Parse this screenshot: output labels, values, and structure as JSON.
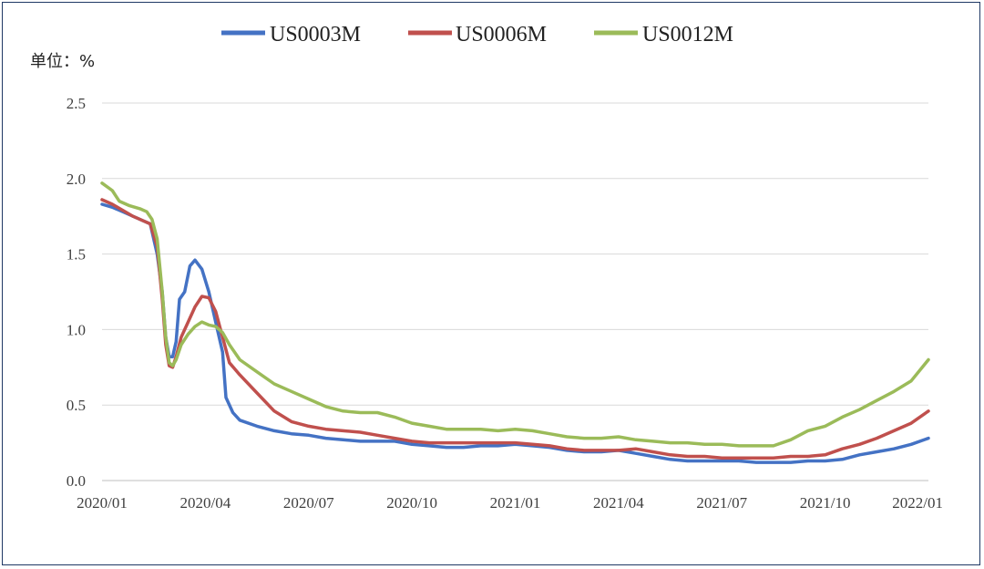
{
  "chart_data": {
    "type": "line",
    "title": "",
    "unit_label": "单位：%",
    "ylim": [
      0,
      2.5
    ],
    "y_ticks": [
      "0.0",
      "0.5",
      "1.0",
      "1.5",
      "2.0",
      "2.5"
    ],
    "y_tick_values": [
      0,
      0.5,
      1.0,
      1.5,
      2.0,
      2.5
    ],
    "x_ticks": [
      "2020/01",
      "2020/04",
      "2020/07",
      "2020/10",
      "2021/01",
      "2021/04",
      "2021/07",
      "2021/10",
      "2022/01"
    ],
    "xlim": [
      0,
      24
    ],
    "grid": true,
    "legend_position": "top",
    "series": [
      {
        "name": "US0003M",
        "color": "#4472c4",
        "points": [
          [
            0,
            1.83
          ],
          [
            0.3,
            1.81
          ],
          [
            0.6,
            1.78
          ],
          [
            0.9,
            1.75
          ],
          [
            1.2,
            1.72
          ],
          [
            1.4,
            1.7
          ],
          [
            1.6,
            1.5
          ],
          [
            1.75,
            1.25
          ],
          [
            1.85,
            0.95
          ],
          [
            1.95,
            0.82
          ],
          [
            2.05,
            0.82
          ],
          [
            2.15,
            0.92
          ],
          [
            2.25,
            1.2
          ],
          [
            2.4,
            1.25
          ],
          [
            2.55,
            1.42
          ],
          [
            2.7,
            1.46
          ],
          [
            2.9,
            1.4
          ],
          [
            3.1,
            1.25
          ],
          [
            3.3,
            1.05
          ],
          [
            3.5,
            0.85
          ],
          [
            3.6,
            0.55
          ],
          [
            3.8,
            0.45
          ],
          [
            4.0,
            0.4
          ],
          [
            4.5,
            0.36
          ],
          [
            5,
            0.33
          ],
          [
            5.5,
            0.31
          ],
          [
            6,
            0.3
          ],
          [
            6.5,
            0.28
          ],
          [
            7,
            0.27
          ],
          [
            7.5,
            0.26
          ],
          [
            8,
            0.26
          ],
          [
            8.5,
            0.26
          ],
          [
            9,
            0.24
          ],
          [
            9.5,
            0.23
          ],
          [
            10,
            0.22
          ],
          [
            10.5,
            0.22
          ],
          [
            11,
            0.23
          ],
          [
            11.5,
            0.23
          ],
          [
            12,
            0.24
          ],
          [
            12.5,
            0.23
          ],
          [
            13,
            0.22
          ],
          [
            13.5,
            0.2
          ],
          [
            14,
            0.19
          ],
          [
            14.5,
            0.19
          ],
          [
            15,
            0.2
          ],
          [
            15.5,
            0.18
          ],
          [
            16,
            0.16
          ],
          [
            16.5,
            0.14
          ],
          [
            17,
            0.13
          ],
          [
            17.5,
            0.13
          ],
          [
            18,
            0.13
          ],
          [
            18.5,
            0.13
          ],
          [
            19,
            0.12
          ],
          [
            19.5,
            0.12
          ],
          [
            20,
            0.12
          ],
          [
            20.5,
            0.13
          ],
          [
            21,
            0.13
          ],
          [
            21.5,
            0.14
          ],
          [
            22,
            0.17
          ],
          [
            22.5,
            0.19
          ],
          [
            23,
            0.21
          ],
          [
            23.5,
            0.24
          ],
          [
            24,
            0.28
          ]
        ]
      },
      {
        "name": "US0006M",
        "color": "#c0504d",
        "points": [
          [
            0,
            1.86
          ],
          [
            0.3,
            1.83
          ],
          [
            0.6,
            1.79
          ],
          [
            0.9,
            1.75
          ],
          [
            1.2,
            1.72
          ],
          [
            1.4,
            1.7
          ],
          [
            1.6,
            1.55
          ],
          [
            1.75,
            1.2
          ],
          [
            1.85,
            0.9
          ],
          [
            1.95,
            0.76
          ],
          [
            2.05,
            0.75
          ],
          [
            2.15,
            0.82
          ],
          [
            2.3,
            0.95
          ],
          [
            2.5,
            1.05
          ],
          [
            2.7,
            1.15
          ],
          [
            2.9,
            1.22
          ],
          [
            3.1,
            1.21
          ],
          [
            3.3,
            1.12
          ],
          [
            3.5,
            0.95
          ],
          [
            3.7,
            0.78
          ],
          [
            4.0,
            0.7
          ],
          [
            4.5,
            0.58
          ],
          [
            5,
            0.46
          ],
          [
            5.5,
            0.39
          ],
          [
            6,
            0.36
          ],
          [
            6.5,
            0.34
          ],
          [
            7,
            0.33
          ],
          [
            7.5,
            0.32
          ],
          [
            8,
            0.3
          ],
          [
            8.5,
            0.28
          ],
          [
            9,
            0.26
          ],
          [
            9.5,
            0.25
          ],
          [
            10,
            0.25
          ],
          [
            10.5,
            0.25
          ],
          [
            11,
            0.25
          ],
          [
            11.5,
            0.25
          ],
          [
            12,
            0.25
          ],
          [
            12.5,
            0.24
          ],
          [
            13,
            0.23
          ],
          [
            13.5,
            0.21
          ],
          [
            14,
            0.2
          ],
          [
            14.5,
            0.2
          ],
          [
            15,
            0.2
          ],
          [
            15.5,
            0.21
          ],
          [
            16,
            0.19
          ],
          [
            16.5,
            0.17
          ],
          [
            17,
            0.16
          ],
          [
            17.5,
            0.16
          ],
          [
            18,
            0.15
          ],
          [
            18.5,
            0.15
          ],
          [
            19,
            0.15
          ],
          [
            19.5,
            0.15
          ],
          [
            20,
            0.16
          ],
          [
            20.5,
            0.16
          ],
          [
            21,
            0.17
          ],
          [
            21.5,
            0.21
          ],
          [
            22,
            0.24
          ],
          [
            22.5,
            0.28
          ],
          [
            23,
            0.33
          ],
          [
            23.5,
            0.38
          ],
          [
            24,
            0.46
          ]
        ]
      },
      {
        "name": "US0012M",
        "color": "#9bbb59",
        "points": [
          [
            0,
            1.97
          ],
          [
            0.3,
            1.92
          ],
          [
            0.5,
            1.85
          ],
          [
            0.8,
            1.82
          ],
          [
            1.1,
            1.8
          ],
          [
            1.3,
            1.78
          ],
          [
            1.45,
            1.73
          ],
          [
            1.6,
            1.6
          ],
          [
            1.75,
            1.25
          ],
          [
            1.85,
            0.95
          ],
          [
            1.95,
            0.78
          ],
          [
            2.05,
            0.76
          ],
          [
            2.15,
            0.8
          ],
          [
            2.3,
            0.9
          ],
          [
            2.5,
            0.97
          ],
          [
            2.7,
            1.02
          ],
          [
            2.9,
            1.05
          ],
          [
            3.1,
            1.03
          ],
          [
            3.3,
            1.02
          ],
          [
            3.5,
            0.98
          ],
          [
            3.7,
            0.9
          ],
          [
            4.0,
            0.8
          ],
          [
            4.5,
            0.72
          ],
          [
            5,
            0.64
          ],
          [
            5.5,
            0.59
          ],
          [
            6,
            0.54
          ],
          [
            6.5,
            0.49
          ],
          [
            7,
            0.46
          ],
          [
            7.5,
            0.45
          ],
          [
            8,
            0.45
          ],
          [
            8.5,
            0.42
          ],
          [
            9,
            0.38
          ],
          [
            9.5,
            0.36
          ],
          [
            10,
            0.34
          ],
          [
            10.5,
            0.34
          ],
          [
            11,
            0.34
          ],
          [
            11.5,
            0.33
          ],
          [
            12,
            0.34
          ],
          [
            12.5,
            0.33
          ],
          [
            13,
            0.31
          ],
          [
            13.5,
            0.29
          ],
          [
            14,
            0.28
          ],
          [
            14.5,
            0.28
          ],
          [
            15,
            0.29
          ],
          [
            15.5,
            0.27
          ],
          [
            16,
            0.26
          ],
          [
            16.5,
            0.25
          ],
          [
            17,
            0.25
          ],
          [
            17.5,
            0.24
          ],
          [
            18,
            0.24
          ],
          [
            18.5,
            0.23
          ],
          [
            19,
            0.23
          ],
          [
            19.5,
            0.23
          ],
          [
            20,
            0.27
          ],
          [
            20.5,
            0.33
          ],
          [
            21,
            0.36
          ],
          [
            21.5,
            0.42
          ],
          [
            22,
            0.47
          ],
          [
            22.5,
            0.53
          ],
          [
            23,
            0.59
          ],
          [
            23.5,
            0.66
          ],
          [
            24,
            0.8
          ]
        ]
      }
    ]
  }
}
